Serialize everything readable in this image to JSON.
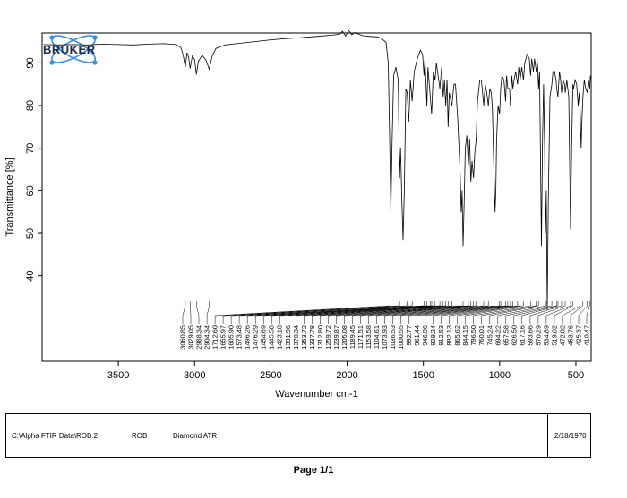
{
  "brand": {
    "logo_text": "BRUKER",
    "colors": {
      "ring": "#3a8fd8",
      "text": "#1b2a4a"
    }
  },
  "chart_data": {
    "type": "line",
    "ylabel": "Transmittance [%]",
    "xlabel": "Wavenumber cm-1",
    "xlim": [
      4000,
      400
    ],
    "x_reversed": true,
    "ylim": [
      20,
      97
    ],
    "xticks": [
      3500,
      3000,
      2500,
      2000,
      1500,
      1000,
      500
    ],
    "yticks": [
      40,
      50,
      60,
      70,
      80,
      90
    ],
    "grid": false,
    "series": [
      {
        "values": [
          [
            3990,
            94.3
          ],
          [
            3900,
            94.2
          ],
          [
            3800,
            94.3
          ],
          [
            3700,
            94.2
          ],
          [
            3600,
            94.4
          ],
          [
            3500,
            94.3
          ],
          [
            3400,
            94.2
          ],
          [
            3300,
            94.4
          ],
          [
            3200,
            94.5
          ],
          [
            3120,
            94.3
          ],
          [
            3090,
            93.6
          ],
          [
            3075,
            91.8
          ],
          [
            3061,
            89.0
          ],
          [
            3050,
            92.4
          ],
          [
            3040,
            91.4
          ],
          [
            3029,
            88.7
          ],
          [
            3015,
            91.6
          ],
          [
            3000,
            90.8
          ],
          [
            2989,
            87.3
          ],
          [
            2975,
            90.4
          ],
          [
            2950,
            91.8
          ],
          [
            2925,
            90.6
          ],
          [
            2904,
            88.5
          ],
          [
            2885,
            91.6
          ],
          [
            2860,
            93.4
          ],
          [
            2800,
            94.2
          ],
          [
            2700,
            94.6
          ],
          [
            2600,
            95.0
          ],
          [
            2500,
            95.4
          ],
          [
            2400,
            95.7
          ],
          [
            2300,
            95.9
          ],
          [
            2200,
            96.2
          ],
          [
            2100,
            96.5
          ],
          [
            2050,
            96.7
          ],
          [
            2030,
            97.4
          ],
          [
            2010,
            96.3
          ],
          [
            1990,
            97.6
          ],
          [
            1970,
            96.6
          ],
          [
            1950,
            97.1
          ],
          [
            1900,
            96.4
          ],
          [
            1850,
            96.2
          ],
          [
            1800,
            96.1
          ],
          [
            1770,
            95.6
          ],
          [
            1745,
            94.8
          ],
          [
            1730,
            90.0
          ],
          [
            1720,
            70.0
          ],
          [
            1713,
            55.0
          ],
          [
            1705,
            72.0
          ],
          [
            1695,
            87.0
          ],
          [
            1680,
            89.0
          ],
          [
            1665,
            86.0
          ],
          [
            1656,
            63.0
          ],
          [
            1650,
            70.0
          ],
          [
            1640,
            56.0
          ],
          [
            1633,
            48.5
          ],
          [
            1625,
            60.0
          ],
          [
            1615,
            84.0
          ],
          [
            1606,
            83.0
          ],
          [
            1596,
            76.0
          ],
          [
            1585,
            86.0
          ],
          [
            1574,
            81.0
          ],
          [
            1560,
            88.0
          ],
          [
            1540,
            91.0
          ],
          [
            1520,
            93.0
          ],
          [
            1505,
            92.0
          ],
          [
            1496,
            87.0
          ],
          [
            1490,
            91.0
          ],
          [
            1477,
            80.0
          ],
          [
            1470,
            89.0
          ],
          [
            1455,
            82.0
          ],
          [
            1446,
            78.0
          ],
          [
            1435,
            88.0
          ],
          [
            1423,
            86.0
          ],
          [
            1415,
            90.0
          ],
          [
            1392,
            84.0
          ],
          [
            1380,
            89.0
          ],
          [
            1370,
            82.0
          ],
          [
            1362,
            86.0
          ],
          [
            1354,
            80.0
          ],
          [
            1345,
            86.0
          ],
          [
            1338,
            75.0
          ],
          [
            1330,
            83.0
          ],
          [
            1313,
            80.0
          ],
          [
            1300,
            85.0
          ],
          [
            1290,
            85.0
          ],
          [
            1275,
            77.0
          ],
          [
            1260,
            65.0
          ],
          [
            1252,
            55.0
          ],
          [
            1246,
            60.0
          ],
          [
            1240,
            47.0
          ],
          [
            1233,
            57.0
          ],
          [
            1225,
            70.0
          ],
          [
            1215,
            73.0
          ],
          [
            1205,
            66.0
          ],
          [
            1197,
            72.0
          ],
          [
            1189,
            62.0
          ],
          [
            1181,
            67.0
          ],
          [
            1171,
            63.0
          ],
          [
            1163,
            69.0
          ],
          [
            1154,
            72.0
          ],
          [
            1145,
            81.0
          ],
          [
            1130,
            86.0
          ],
          [
            1120,
            86.0
          ],
          [
            1104,
            80.0
          ],
          [
            1095,
            85.0
          ],
          [
            1085,
            83.0
          ],
          [
            1074,
            80.0
          ],
          [
            1065,
            84.0
          ],
          [
            1055,
            83.0
          ],
          [
            1047,
            79.0
          ],
          [
            1037,
            64.0
          ],
          [
            1030,
            55.0
          ],
          [
            1025,
            60.0
          ],
          [
            1020,
            72.0
          ],
          [
            1010,
            80.0
          ],
          [
            1000,
            78.0
          ],
          [
            993,
            84.0
          ],
          [
            985,
            87.0
          ],
          [
            972,
            86.0
          ],
          [
            961,
            81.0
          ],
          [
            955,
            87.0
          ],
          [
            946,
            84.0
          ],
          [
            935,
            84.0
          ],
          [
            929,
            80.0
          ],
          [
            920,
            87.0
          ],
          [
            913,
            84.0
          ],
          [
            905,
            86.0
          ],
          [
            895,
            88.0
          ],
          [
            882,
            85.0
          ],
          [
            875,
            89.0
          ],
          [
            866,
            86.0
          ],
          [
            855,
            89.0
          ],
          [
            844,
            86.0
          ],
          [
            835,
            90.0
          ],
          [
            820,
            92.0
          ],
          [
            806,
            91.0
          ],
          [
            797,
            87.0
          ],
          [
            790,
            91.0
          ],
          [
            779,
            88.0
          ],
          [
            771,
            91.0
          ],
          [
            760,
            88.0
          ],
          [
            752,
            90.0
          ],
          [
            745,
            84.0
          ],
          [
            738,
            88.0
          ],
          [
            726,
            47.0
          ],
          [
            719,
            72.0
          ],
          [
            712,
            85.0
          ],
          [
            705,
            70.0
          ],
          [
            700,
            50.0
          ],
          [
            694,
            60.0
          ],
          [
            688,
            32.0
          ],
          [
            681,
            58.0
          ],
          [
            670,
            82.0
          ],
          [
            658,
            85.0
          ],
          [
            650,
            88.0
          ],
          [
            640,
            88.0
          ],
          [
            630,
            86.0
          ],
          [
            626,
            84.0
          ],
          [
            618,
            82.0
          ],
          [
            608,
            88.0
          ],
          [
            600,
            86.0
          ],
          [
            594,
            83.0
          ],
          [
            585,
            86.0
          ],
          [
            574,
            85.0
          ],
          [
            570,
            83.0
          ],
          [
            560,
            86.0
          ],
          [
            547,
            82.0
          ],
          [
            535,
            51.0
          ],
          [
            528,
            70.0
          ],
          [
            520,
            85.0
          ],
          [
            515,
            84.0
          ],
          [
            505,
            86.0
          ],
          [
            495,
            85.0
          ],
          [
            485,
            80.0
          ],
          [
            478,
            83.0
          ],
          [
            472,
            79.0
          ],
          [
            466,
            70.0
          ],
          [
            460,
            77.0
          ],
          [
            454,
            82.0
          ],
          [
            445,
            86.0
          ],
          [
            436,
            84.0
          ],
          [
            425,
            83.0
          ],
          [
            418,
            86.0
          ],
          [
            410,
            84.0
          ],
          [
            405,
            87.0
          ]
        ]
      }
    ],
    "peak_labels": [
      "3060.85",
      "3029.05",
      "2988.34",
      "2904.34",
      "1712.60",
      "1655.97",
      "1605.90",
      "1573.48",
      "1496.26",
      "1476.29",
      "1454.69",
      "1445.58",
      "1423.18",
      "1391.96",
      "1370.34",
      "1353.72",
      "1337.78",
      "1312.80",
      "1259.72",
      "1239.87",
      "1205.08",
      "1189.45",
      "1171.51",
      "1153.58",
      "1104.61",
      "1073.93",
      "1036.53",
      "1000.55",
      "992.77",
      "961.44",
      "946.96",
      "929.24",
      "912.53",
      "882.13",
      "865.62",
      "844.15",
      "796.50",
      "760.01",
      "745.24",
      "694.22",
      "657.58",
      "626.50",
      "617.16",
      "593.66",
      "570.29",
      "534.89",
      "519.62",
      "472.02",
      "453.76",
      "425.37",
      "410.47"
    ],
    "peak_positions": [
      3060.85,
      3029.05,
      2988.34,
      2904.34,
      1712.6,
      1655.97,
      1605.9,
      1573.48,
      1496.26,
      1476.29,
      1454.69,
      1445.58,
      1423.18,
      1391.96,
      1370.34,
      1353.72,
      1337.78,
      1312.8,
      1259.72,
      1239.87,
      1205.08,
      1189.45,
      1171.51,
      1153.58,
      1104.61,
      1073.93,
      1036.53,
      1000.55,
      992.77,
      961.44,
      946.96,
      929.24,
      912.53,
      882.13,
      865.62,
      844.15,
      796.5,
      760.01,
      745.24,
      694.22,
      657.58,
      626.5,
      617.16,
      593.66,
      570.29,
      534.89,
      519.62,
      472.02,
      453.76,
      425.37,
      410.47
    ]
  },
  "footer": {
    "file_path": "C:\\Alpha FTIR Data\\ROB.2",
    "operator": "ROB",
    "method": "Diamond ATR",
    "date": "2/18/1970"
  },
  "page_label": "Page 1/1"
}
